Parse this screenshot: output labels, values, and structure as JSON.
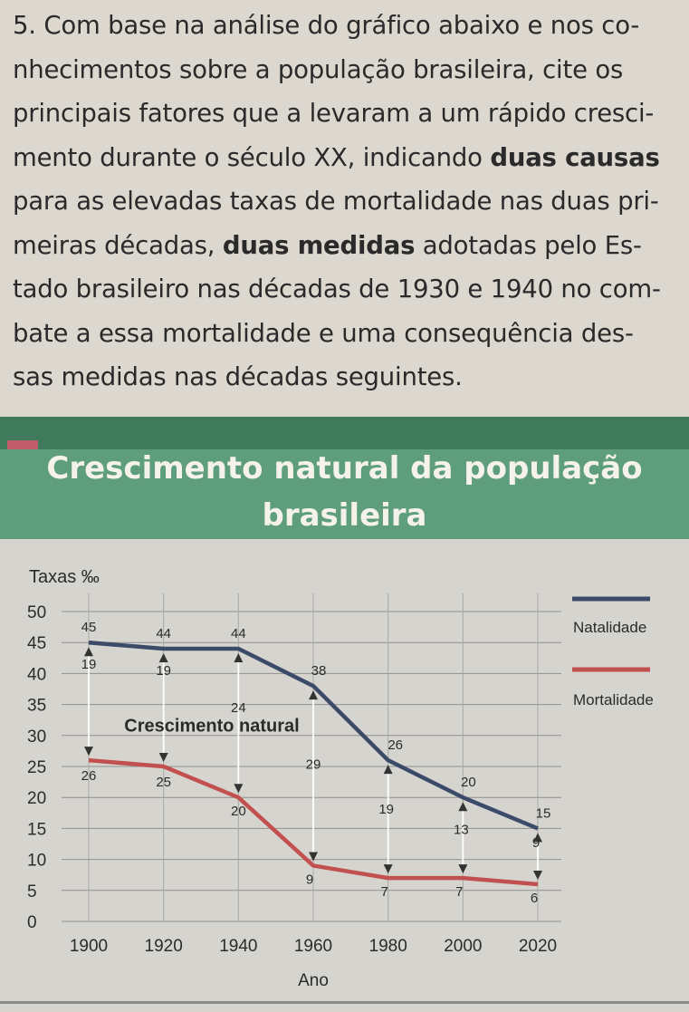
{
  "question": {
    "lines": [
      [
        "5. Com base na análise do gráfico abaixo e nos co-"
      ],
      [
        "nhecimentos sobre a população brasileira, cite os"
      ],
      [
        "principais fatores que a levaram a um rápido cresci-"
      ],
      [
        "mento durante o século XX, indicando ",
        {
          "b": "duas causas"
        }
      ],
      [
        "para as elevadas taxas de mortalidade nas duas pri-"
      ],
      [
        "meiras décadas, ",
        {
          "b": "duas medidas"
        },
        " adotadas pelo Es-"
      ],
      [
        "tado brasileiro nas décadas de 1930 e 1940 no com-"
      ],
      [
        "bate a essa mortalidade e uma consequência des-"
      ],
      [
        "sas medidas nas décadas seguintes."
      ]
    ]
  },
  "banner": {
    "title_line1": "Crescimento natural da população",
    "title_line2": "brasileira"
  },
  "chart_data": {
    "type": "line",
    "title": "Crescimento natural da população brasileira",
    "ylabel": "Taxas ‰",
    "xlabel": "Ano",
    "x": [
      1900,
      1920,
      1940,
      1960,
      1980,
      2000,
      2020
    ],
    "ylim": [
      0,
      50
    ],
    "yticks": [
      0,
      5,
      10,
      15,
      20,
      25,
      30,
      35,
      40,
      45,
      50
    ],
    "series": [
      {
        "name": "Natalidade",
        "color": "#3c4a6a",
        "values": [
          45,
          44,
          44,
          38,
          26,
          20,
          15
        ]
      },
      {
        "name": "Mortalidade",
        "color": "#c1504f",
        "values": [
          26,
          25,
          20,
          9,
          7,
          7,
          6
        ]
      }
    ],
    "natural_growth": [
      19,
      19,
      24,
      29,
      19,
      13,
      9
    ],
    "annotation": "Crescimento natural",
    "legend": "right"
  },
  "colors": {
    "banner": "#5f9e7c",
    "banner_strip": "#3f7a5d",
    "chart_bg": "#d6d4cf"
  }
}
